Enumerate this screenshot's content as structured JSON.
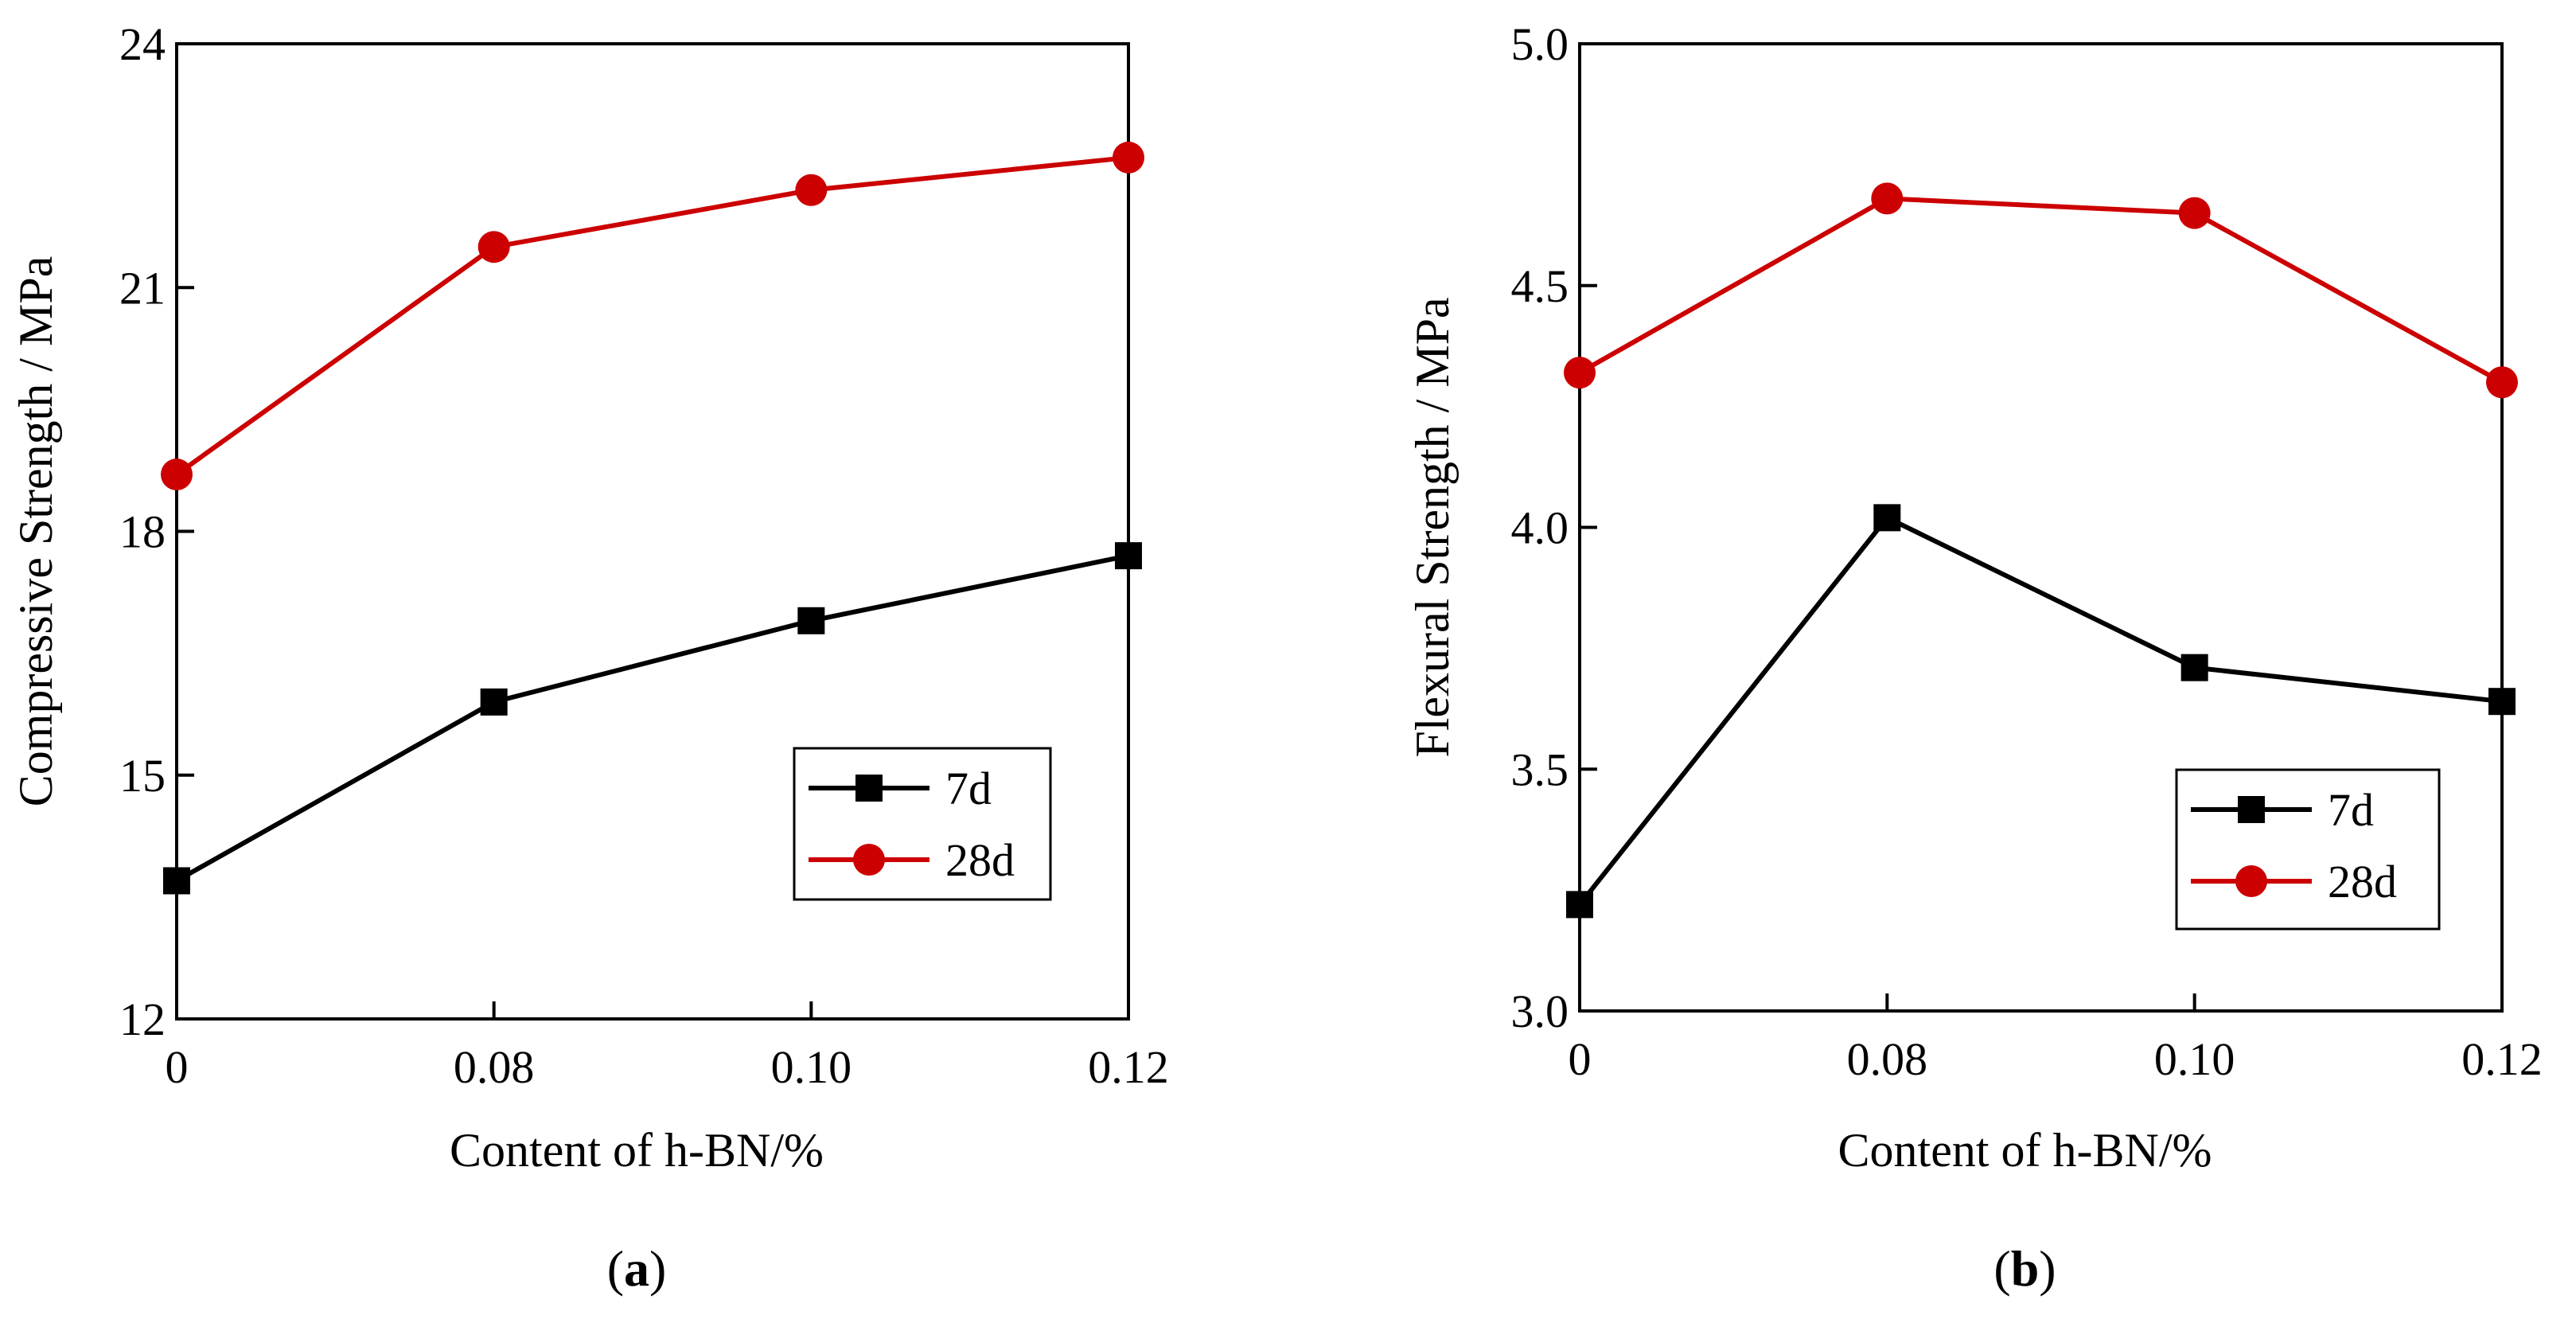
{
  "chart_data": [
    {
      "type": "line",
      "panel_label": "a",
      "title": "",
      "xlabel": "Content of h-BN/%",
      "ylabel": "Compressive Strength / MPa",
      "categories": [
        "0",
        "0.08",
        "0.10",
        "0.12"
      ],
      "yticks": [
        "12",
        "15",
        "18",
        "21",
        "24"
      ],
      "ylim": [
        12,
        24
      ],
      "legend_position": "bottom-right",
      "series": [
        {
          "name": "7d",
          "color": "#000000",
          "marker": "square",
          "values": [
            13.7,
            15.9,
            16.9,
            17.7
          ]
        },
        {
          "name": "28d",
          "color": "#cc0000",
          "marker": "circle",
          "values": [
            18.7,
            21.5,
            22.2,
            22.6
          ]
        }
      ]
    },
    {
      "type": "line",
      "panel_label": "b",
      "title": "",
      "xlabel": "Content of h-BN/%",
      "ylabel": "Flexural Strength / MPa",
      "categories": [
        "0",
        "0.08",
        "0.10",
        "0.12"
      ],
      "yticks": [
        "3.0",
        "3.5",
        "4.0",
        "4.5",
        "5.0"
      ],
      "ylim": [
        3.0,
        5.0
      ],
      "legend_position": "bottom-right",
      "series": [
        {
          "name": "7d",
          "color": "#000000",
          "marker": "square",
          "values": [
            3.22,
            4.02,
            3.71,
            3.64
          ]
        },
        {
          "name": "28d",
          "color": "#cc0000",
          "marker": "circle",
          "values": [
            4.32,
            4.68,
            4.65,
            4.3
          ]
        }
      ]
    }
  ]
}
